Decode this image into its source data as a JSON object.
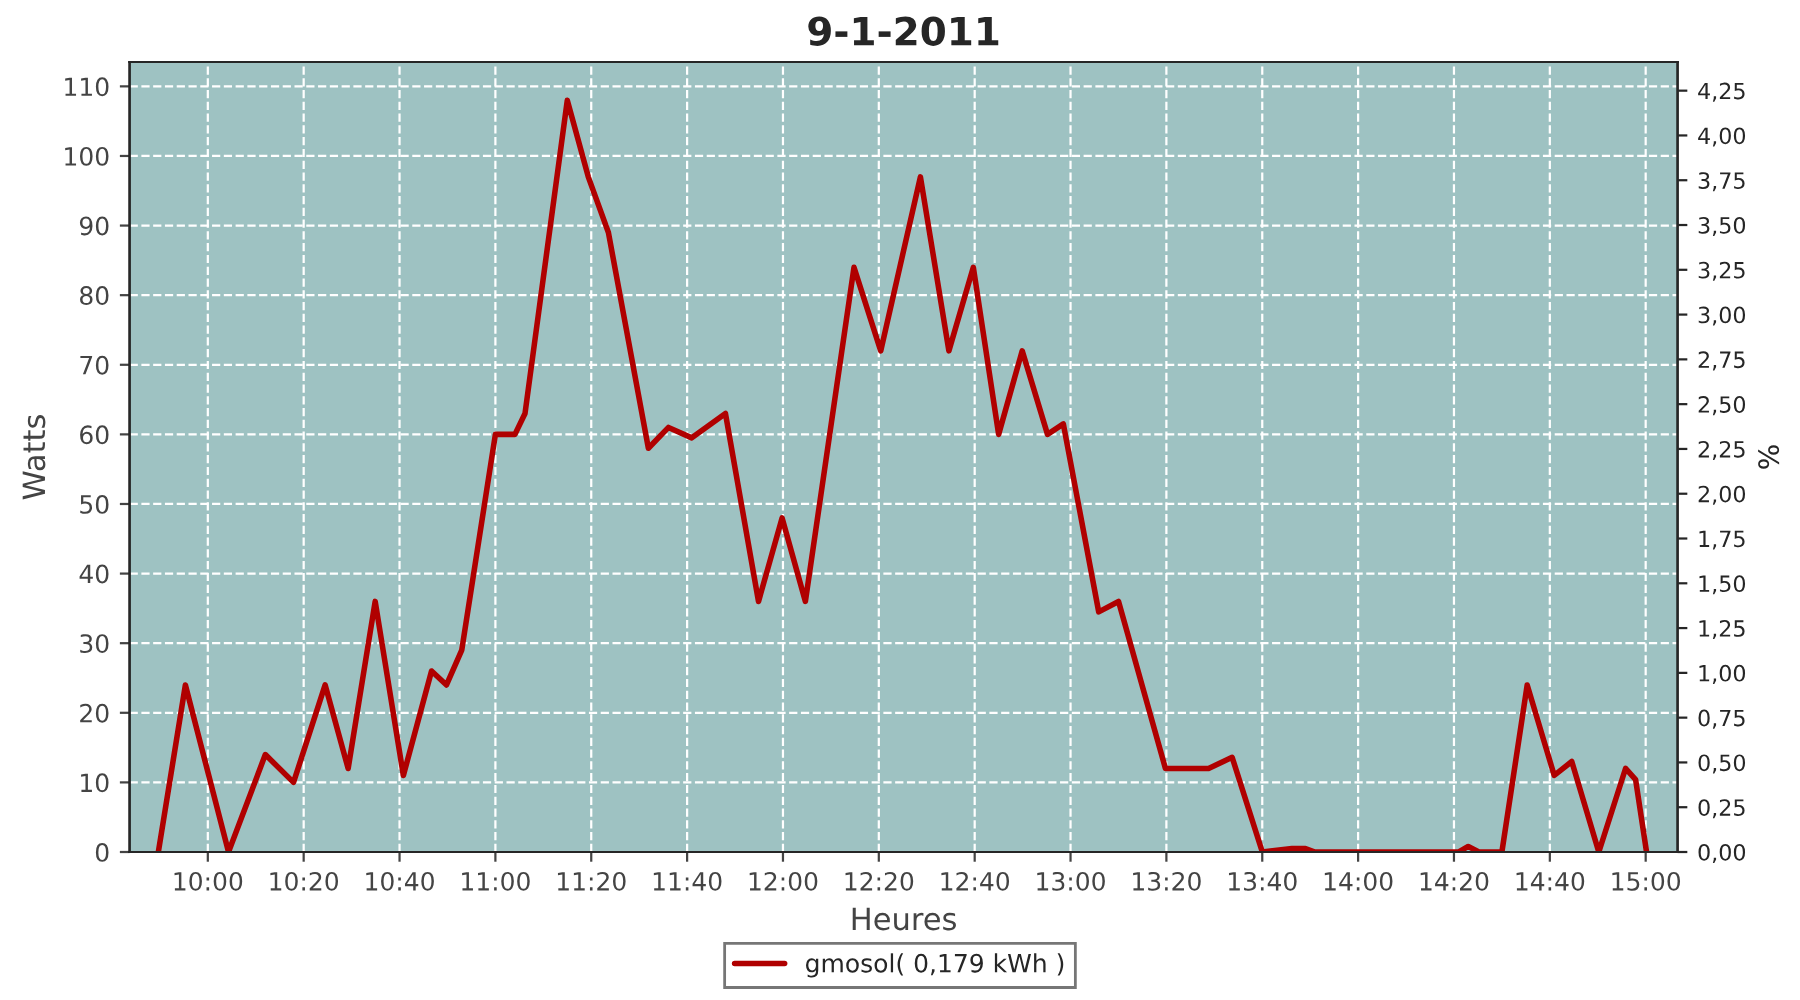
{
  "chart_data": {
    "type": "line",
    "title": "9-1-2011",
    "xlabel": "Heures",
    "ylabel": "Watts",
    "y2label": "%",
    "series": [
      {
        "name": "gmosol( 0,179 kWh )",
        "color": "#b00000",
        "x": [
          9.828,
          9.922,
          10.072,
          10.2,
          10.298,
          10.408,
          10.488,
          10.582,
          10.68,
          10.778,
          10.83,
          10.883,
          11.0,
          11.068,
          11.103,
          11.25,
          11.323,
          11.393,
          11.532,
          11.602,
          11.683,
          11.8,
          11.915,
          11.997,
          12.078,
          12.247,
          12.34,
          12.478,
          12.577,
          12.662,
          12.75,
          12.832,
          12.92,
          12.975,
          13.098,
          13.167,
          13.33,
          13.48,
          13.562,
          13.667,
          13.77,
          13.817,
          13.85,
          14.35,
          14.383,
          14.42,
          14.5,
          14.588,
          14.682,
          14.743,
          14.837,
          14.93,
          14.965,
          15.003
        ],
        "values": [
          0,
          24,
          0,
          14,
          10,
          24,
          12,
          36,
          11,
          26,
          24,
          29,
          60,
          60,
          63,
          108,
          97,
          89,
          58,
          61,
          59.5,
          63,
          36,
          48,
          36,
          84,
          72,
          97,
          72,
          84,
          60,
          72,
          60,
          61.5,
          34.5,
          36,
          12,
          12,
          13.6,
          0,
          0.5,
          0.5,
          0,
          0,
          0.8,
          0,
          0,
          24,
          11,
          13,
          0,
          12,
          10.4,
          0
        ]
      }
    ],
    "xlim": [
      9.728,
      15.111
    ],
    "xticks": [
      {
        "value": 10.0,
        "label": "10:00"
      },
      {
        "value": 10.3333,
        "label": "10:20"
      },
      {
        "value": 10.6667,
        "label": "10:40"
      },
      {
        "value": 11.0,
        "label": "11:00"
      },
      {
        "value": 11.3333,
        "label": "11:20"
      },
      {
        "value": 11.6667,
        "label": "11:40"
      },
      {
        "value": 12.0,
        "label": "12:00"
      },
      {
        "value": 12.3333,
        "label": "12:20"
      },
      {
        "value": 12.6667,
        "label": "12:40"
      },
      {
        "value": 13.0,
        "label": "13:00"
      },
      {
        "value": 13.3333,
        "label": "13:20"
      },
      {
        "value": 13.6667,
        "label": "13:40"
      },
      {
        "value": 14.0,
        "label": "14:00"
      },
      {
        "value": 14.3333,
        "label": "14:20"
      },
      {
        "value": 14.6667,
        "label": "14:40"
      },
      {
        "value": 15.0,
        "label": "15:00"
      }
    ],
    "ylim": [
      0,
      113.5
    ],
    "yticks": [
      0,
      10,
      20,
      30,
      40,
      50,
      60,
      70,
      80,
      90,
      100,
      110
    ],
    "y2lim": [
      0,
      4.41
    ],
    "y2ticks": [
      {
        "value": 0,
        "label": "0,00"
      },
      {
        "value": 0.25,
        "label": "0,25"
      },
      {
        "value": 0.5,
        "label": "0,50"
      },
      {
        "value": 0.75,
        "label": "0,75"
      },
      {
        "value": 1.0,
        "label": "1,00"
      },
      {
        "value": 1.25,
        "label": "1,25"
      },
      {
        "value": 1.5,
        "label": "1,50"
      },
      {
        "value": 1.75,
        "label": "1,75"
      },
      {
        "value": 2.0,
        "label": "2,00"
      },
      {
        "value": 2.25,
        "label": "2,25"
      },
      {
        "value": 2.5,
        "label": "2,50"
      },
      {
        "value": 2.75,
        "label": "2,75"
      },
      {
        "value": 3.0,
        "label": "3,00"
      },
      {
        "value": 3.25,
        "label": "3,25"
      },
      {
        "value": 3.5,
        "label": "3,50"
      },
      {
        "value": 3.75,
        "label": "3,75"
      },
      {
        "value": 4.0,
        "label": "4,00"
      },
      {
        "value": 4.25,
        "label": "4,25"
      }
    ],
    "grid": true,
    "legend": "bottom",
    "line_style": "solid"
  }
}
